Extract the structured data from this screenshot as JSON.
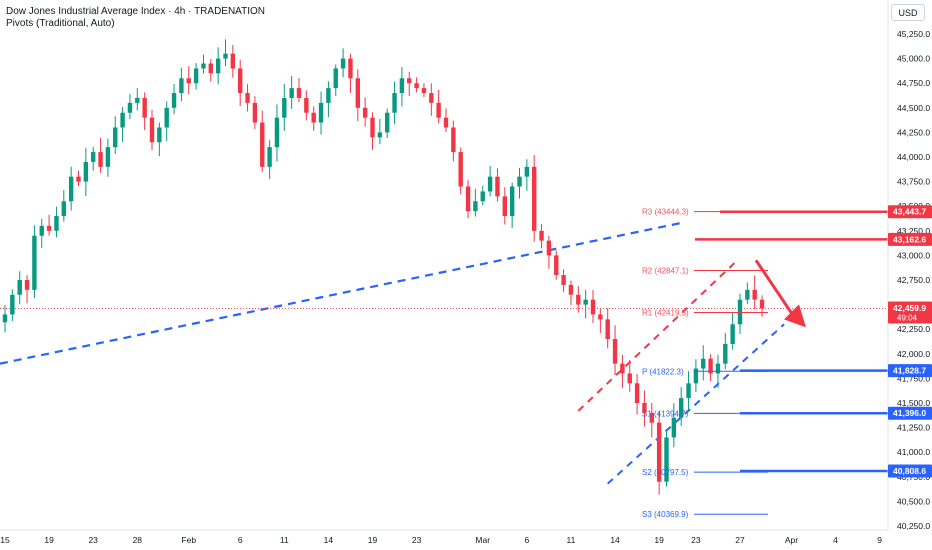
{
  "header": {
    "title": "Dow Jones Industrial Average Index · 4h · TRADENATION",
    "indicator": "Pivots (Traditional, Auto)"
  },
  "currency_button": "USD",
  "chart_data": {
    "type": "candlestick",
    "title": "Dow Jones Industrial Average Index · 4h · TRADENATION",
    "ylim": [
      40200,
      45400
    ],
    "y_ticks": [
      {
        "v": 45250,
        "label": "45,250.0"
      },
      {
        "v": 45000,
        "label": "45,000.0"
      },
      {
        "v": 44750,
        "label": "44,750.0"
      },
      {
        "v": 44500,
        "label": "44,500.0"
      },
      {
        "v": 44250,
        "label": "44,250.0"
      },
      {
        "v": 44000,
        "label": "44,000.0"
      },
      {
        "v": 43750,
        "label": "43,750.0"
      },
      {
        "v": 43500,
        "label": "43,500.0"
      },
      {
        "v": 43250,
        "label": "43,250.0"
      },
      {
        "v": 43000,
        "label": "43,000.0"
      },
      {
        "v": 42750,
        "label": "42,750.0"
      },
      {
        "v": 42500,
        "label": "42,500.0"
      },
      {
        "v": 42250,
        "label": "42,250.0"
      },
      {
        "v": 42000,
        "label": "42,000.0"
      },
      {
        "v": 41750,
        "label": "41,750.0"
      },
      {
        "v": 41500,
        "label": "41,500.0"
      },
      {
        "v": 41250,
        "label": "41,250.0"
      },
      {
        "v": 41000,
        "label": "41,000.0"
      },
      {
        "v": 40750,
        "label": "40,750.0"
      },
      {
        "v": 40500,
        "label": "40,500.0"
      },
      {
        "v": 40250,
        "label": "40,250.0"
      }
    ],
    "x_ticks": [
      {
        "i": 0,
        "label": "15"
      },
      {
        "i": 6,
        "label": "19"
      },
      {
        "i": 12,
        "label": "23"
      },
      {
        "i": 18,
        "label": "28"
      },
      {
        "i": 25,
        "label": "Feb"
      },
      {
        "i": 32,
        "label": "6"
      },
      {
        "i": 38,
        "label": "11"
      },
      {
        "i": 44,
        "label": "14"
      },
      {
        "i": 50,
        "label": "19"
      },
      {
        "i": 56,
        "label": "23"
      },
      {
        "i": 65,
        "label": "Mar"
      },
      {
        "i": 71,
        "label": "6"
      },
      {
        "i": 77,
        "label": "11"
      },
      {
        "i": 83,
        "label": "14"
      },
      {
        "i": 89,
        "label": "19"
      },
      {
        "i": 94,
        "label": "23"
      },
      {
        "i": 100,
        "label": "27"
      },
      {
        "i": 107,
        "label": "Apr"
      },
      {
        "i": 113,
        "label": "4"
      },
      {
        "i": 119,
        "label": "9"
      }
    ],
    "candle_count": 104,
    "closes": [
      42400,
      42600,
      42750,
      42650,
      43200,
      43300,
      43250,
      43400,
      43550,
      43800,
      43750,
      43950,
      44050,
      43900,
      44100,
      44300,
      44450,
      44550,
      44600,
      44400,
      44150,
      44300,
      44500,
      44650,
      44800,
      44750,
      44900,
      44950,
      44850,
      45000,
      45050,
      44900,
      44650,
      44550,
      44350,
      43900,
      44100,
      44400,
      44600,
      44700,
      44600,
      44450,
      44350,
      44550,
      44700,
      44900,
      45000,
      44800,
      44500,
      44400,
      44200,
      44250,
      44450,
      44650,
      44800,
      44750,
      44700,
      44650,
      44550,
      44400,
      44300,
      44050,
      43700,
      43450,
      43550,
      43650,
      43800,
      43600,
      43400,
      43700,
      43800,
      43900,
      43250,
      43150,
      43000,
      42800,
      42700,
      42600,
      42500,
      42550,
      42400,
      42350,
      42150,
      41900,
      41800,
      41700,
      41500,
      41400,
      41300,
      40700,
      41150,
      41350,
      41550,
      41700,
      41850,
      41950,
      41800,
      41900,
      42100,
      42300,
      42550,
      42650,
      42550,
      42459.9
    ],
    "pivots": [
      {
        "name": "R3",
        "label": "R3 (43444.3)",
        "value": 43444.3
      },
      {
        "name": "R2",
        "label": "R2 (42847.1)",
        "value": 42847.1
      },
      {
        "name": "R1",
        "label": "R1 (42419.5)",
        "value": 42419.5
      },
      {
        "name": "P",
        "label": "P (41822.3)",
        "value": 41822.3
      },
      {
        "name": "S1",
        "label": "S1 (41394.7)",
        "value": 41394.7
      },
      {
        "name": "S2",
        "label": "S2 (40797.5)",
        "value": 40797.5
      },
      {
        "name": "S3",
        "label": "S3 (40369.9)",
        "value": 40369.9
      }
    ],
    "price_labels": [
      {
        "value": 43443.7,
        "label": "43,443.7",
        "color": "#f23645"
      },
      {
        "value": 43162.6,
        "label": "43,162.6",
        "color": "#f23645"
      },
      {
        "value": 42459.9,
        "label": "42,459.9",
        "sub": "49:04",
        "color": "#f23645"
      },
      {
        "value": 41828.7,
        "label": "41,828.7",
        "color": "#2962ff"
      },
      {
        "value": 41396.0,
        "label": "41,396.0",
        "color": "#2962ff"
      },
      {
        "value": 40808.6,
        "label": "40,808.6",
        "color": "#2962ff"
      }
    ],
    "resistance_lines": [
      43443.7,
      43162.6
    ],
    "support_lines": [
      41828.7,
      41396.0,
      40808.6
    ],
    "last_price": 42459.9,
    "colors": {
      "up": "#089981",
      "down": "#f23645",
      "support": "#2962ff",
      "resistance": "#f23645",
      "pivot_text_r": "#f7525f",
      "pivot_text_s": "#2962ff"
    }
  }
}
